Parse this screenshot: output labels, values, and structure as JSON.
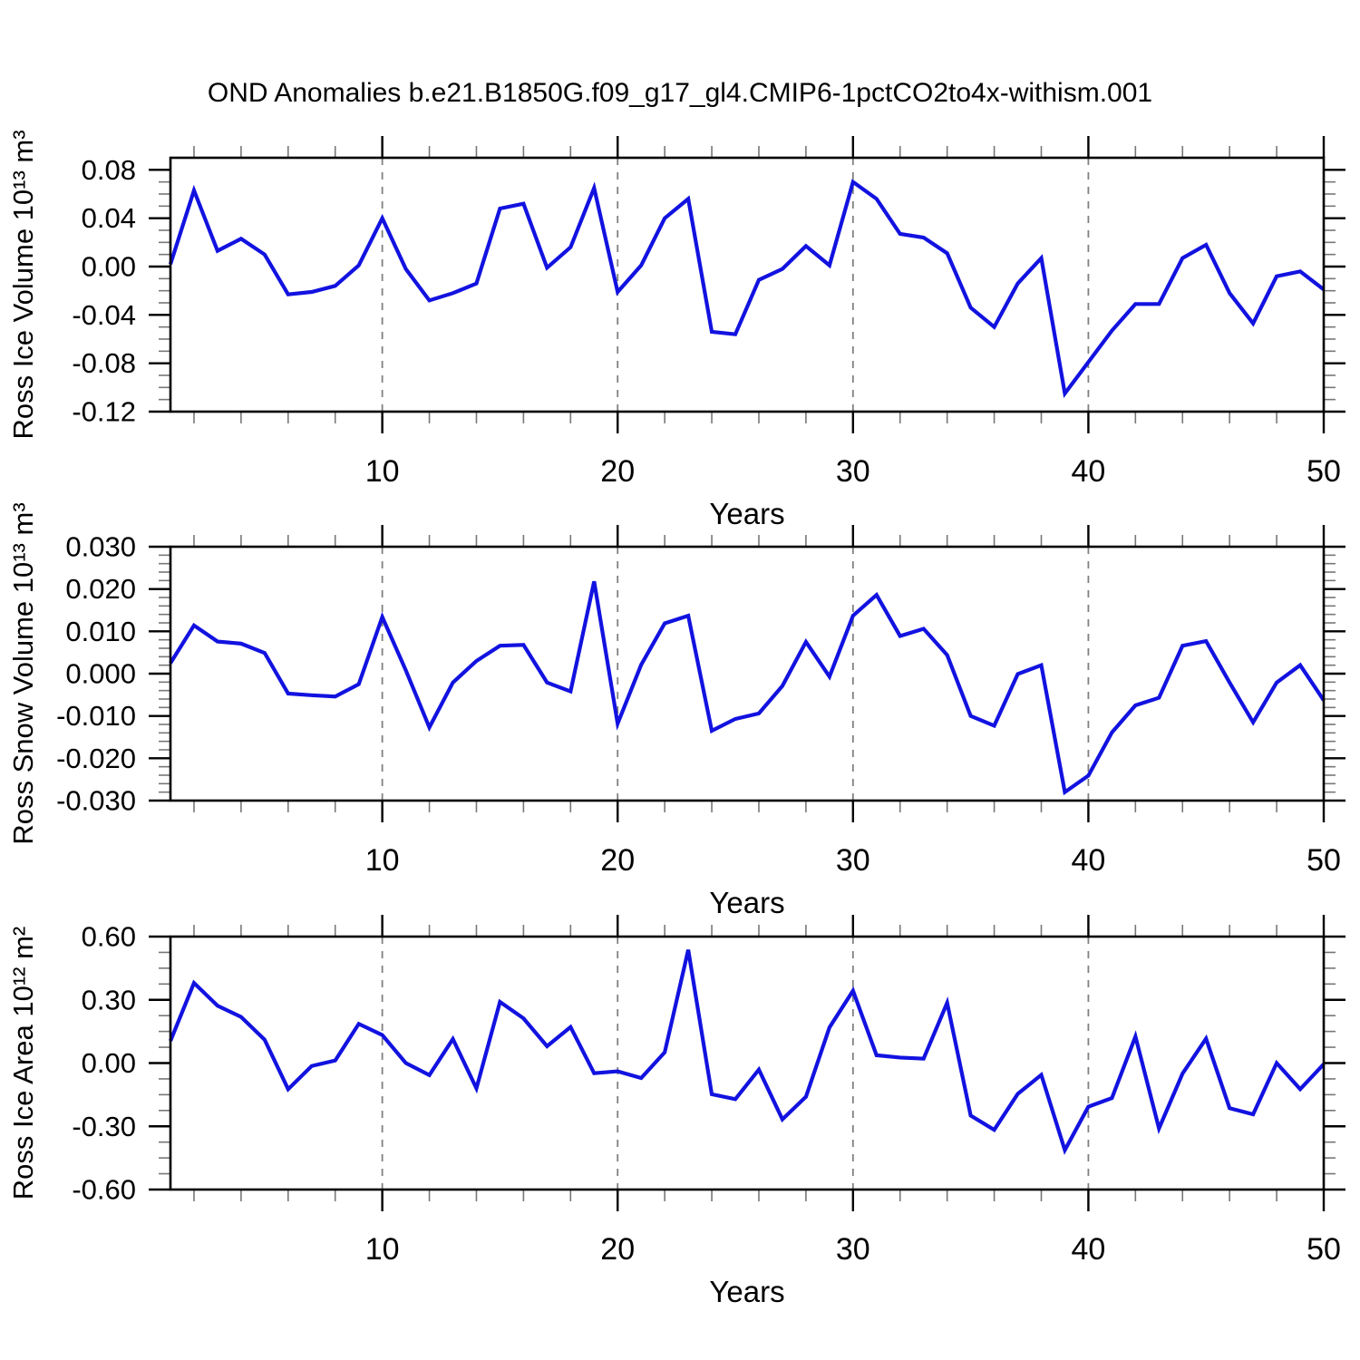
{
  "title": "OND Anomalies b.e21.B1850G.f09_g17_gl4.CMIP6-1pctCO2to4x-withism.001",
  "line_color": "#1212e0",
  "grid_color": "#808080",
  "minor_tick_color": "#777777",
  "major_tick_color": "#000000",
  "chart_data": [
    {
      "type": "line",
      "name": "ross-ice-volume",
      "ylabel": "Ross Ice Volume 10¹³ m³",
      "xlabel": "Years",
      "x_start": 1,
      "x_end": 50,
      "xticks": [
        10,
        20,
        30,
        40,
        50
      ],
      "xtick_labels": [
        "10",
        "20",
        "30",
        "40",
        "50"
      ],
      "x_minor_step": 2,
      "grid_x": [
        10,
        20,
        30,
        40
      ],
      "ylim": [
        -0.12,
        0.09
      ],
      "yticks": [
        0.08,
        0.04,
        0.0,
        -0.04,
        -0.08,
        -0.12
      ],
      "ytick_labels": [
        "0.08",
        "0.04",
        "0.00",
        "-0.04",
        "-0.08",
        "-0.12"
      ],
      "y_minor_step": 0.01,
      "values": [
        0.002,
        0.063,
        0.013,
        0.023,
        0.01,
        -0.023,
        -0.021,
        -0.016,
        0.001,
        0.04,
        -0.002,
        -0.028,
        -0.022,
        -0.014,
        0.048,
        0.052,
        -0.001,
        0.016,
        0.065,
        -0.021,
        0.001,
        0.04,
        0.056,
        -0.054,
        -0.056,
        -0.011,
        -0.002,
        0.017,
        0.001,
        0.07,
        0.056,
        0.027,
        0.024,
        0.011,
        -0.034,
        -0.05,
        -0.014,
        0.007,
        -0.105,
        -0.079,
        -0.053,
        -0.031,
        -0.031,
        0.007,
        0.018,
        -0.022,
        -0.047,
        -0.008,
        -0.004,
        -0.019
      ]
    },
    {
      "type": "line",
      "name": "ross-snow-volume",
      "ylabel": "Ross Snow Volume 10¹³ m³",
      "xlabel": "Years",
      "x_start": 1,
      "x_end": 50,
      "xticks": [
        10,
        20,
        30,
        40,
        50
      ],
      "xtick_labels": [
        "10",
        "20",
        "30",
        "40",
        "50"
      ],
      "x_minor_step": 2,
      "grid_x": [
        10,
        20,
        30,
        40
      ],
      "ylim": [
        -0.03,
        0.03
      ],
      "yticks": [
        0.03,
        0.02,
        0.01,
        0.0,
        -0.01,
        -0.02,
        -0.03
      ],
      "ytick_labels": [
        "0.030",
        "0.020",
        "0.010",
        "0.000",
        "-0.010",
        "-0.020",
        "-0.030"
      ],
      "y_minor_step": 0.002,
      "values": [
        0.0025,
        0.0114,
        0.0076,
        0.0071,
        0.0049,
        -0.0047,
        -0.0051,
        -0.0054,
        -0.0025,
        0.0134,
        0.0008,
        -0.0127,
        -0.0021,
        0.003,
        0.0066,
        0.0068,
        -0.0021,
        -0.0042,
        0.0218,
        -0.0118,
        0.0021,
        0.0119,
        0.0137,
        -0.0135,
        -0.0107,
        -0.0094,
        -0.0029,
        0.0075,
        -0.0007,
        0.0137,
        0.0186,
        0.0089,
        0.0106,
        0.0044,
        -0.01,
        -0.0123,
        -0.0001,
        0.002,
        -0.028,
        -0.0241,
        -0.0139,
        -0.0075,
        -0.0057,
        0.0066,
        0.0077,
        -0.0021,
        -0.0115,
        -0.0021,
        0.002,
        -0.0063
      ]
    },
    {
      "type": "line",
      "name": "ross-ice-area",
      "ylabel": "Ross Ice Area 10¹² m²",
      "xlabel": "Years",
      "x_start": 1,
      "x_end": 50,
      "xticks": [
        10,
        20,
        30,
        40,
        50
      ],
      "xtick_labels": [
        "10",
        "20",
        "30",
        "40",
        "50"
      ],
      "x_minor_step": 2,
      "grid_x": [
        10,
        20,
        30,
        40
      ],
      "ylim": [
        -0.6,
        0.6
      ],
      "yticks": [
        0.6,
        0.3,
        0.0,
        -0.3,
        -0.6
      ],
      "ytick_labels": [
        "0.60",
        "0.30",
        "0.00",
        "-0.30",
        "-0.60"
      ],
      "y_minor_step": 0.075,
      "values": [
        0.105,
        0.38,
        0.272,
        0.219,
        0.111,
        -0.124,
        -0.014,
        0.012,
        0.186,
        0.133,
        0.0,
        -0.057,
        0.114,
        -0.12,
        0.29,
        0.212,
        0.08,
        0.171,
        -0.048,
        -0.039,
        -0.071,
        0.051,
        0.537,
        -0.148,
        -0.171,
        -0.031,
        -0.267,
        -0.16,
        0.169,
        0.343,
        0.037,
        0.026,
        0.021,
        0.286,
        -0.249,
        -0.317,
        -0.146,
        -0.056,
        -0.413,
        -0.207,
        -0.166,
        0.126,
        -0.31,
        -0.05,
        0.116,
        -0.214,
        -0.243,
        0.0,
        -0.124,
        -0.005
      ]
    }
  ]
}
